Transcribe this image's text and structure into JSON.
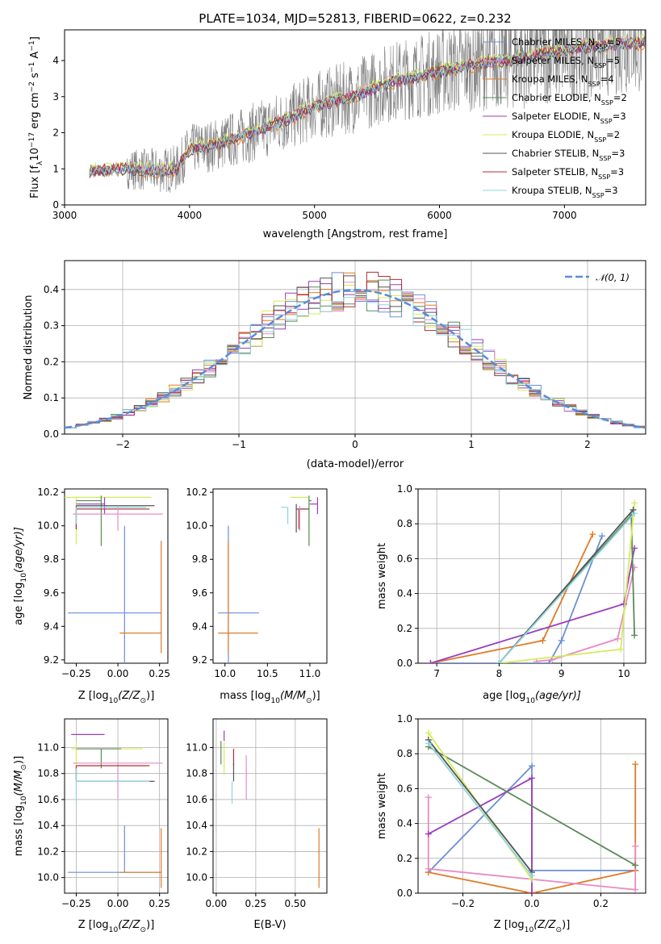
{
  "colors": {
    "chabrier_miles": "#6b8fd6",
    "salpeter_miles": "#e88bc4",
    "kroupa_miles": "#e07b27",
    "chabrier_elodie": "#5a8a5a",
    "salpeter_elodie": "#9a3dbd",
    "kroupa_elodie": "#d4ec5a",
    "chabrier_stelib": "#555555",
    "salpeter_stelib": "#b22c3a",
    "kroupa_stelib": "#8fd4e0",
    "data": "#808080",
    "normal": "#5b8bd8",
    "grid": "#b0b0b0"
  },
  "chart_data": [
    {
      "type": "line",
      "title": "PLATE=1034, MJD=52813, FIBERID=0622, z=0.232",
      "xlabel": "wavelength [Angstrom, rest frame]",
      "ylabel_parts": [
        "Flux [f",
        "λ",
        "10",
        "−17",
        " erg cm",
        "−2",
        " s",
        "−1",
        " A",
        "−1",
        "]"
      ],
      "xlim": [
        3000,
        7650
      ],
      "ylim": [
        0,
        4.85
      ],
      "xticks": [
        3000,
        4000,
        5000,
        6000,
        7000
      ],
      "yticks": [
        0,
        1,
        2,
        3,
        4
      ],
      "grid": false,
      "legend_position": "right",
      "series": [
        {
          "name_main": "Chabrier MILES, N",
          "name_sub": "SSP",
          "name_tail": "=5",
          "color_key": "chabrier_miles"
        },
        {
          "name_main": "Salpeter MILES, N",
          "name_sub": "SSP",
          "name_tail": "=5",
          "color_key": "salpeter_miles"
        },
        {
          "name_main": "Kroupa MILES, N",
          "name_sub": "SSP",
          "name_tail": "=4",
          "color_key": "kroupa_miles"
        },
        {
          "name_main": "Chabrier ELODIE, N",
          "name_sub": "SSP",
          "name_tail": "=2",
          "color_key": "chabrier_elodie"
        },
        {
          "name_main": "Salpeter ELODIE, N",
          "name_sub": "SSP",
          "name_tail": "=3",
          "color_key": "salpeter_elodie"
        },
        {
          "name_main": "Kroupa ELODIE, N",
          "name_sub": "SSP",
          "name_tail": "=2",
          "color_key": "kroupa_elodie"
        },
        {
          "name_main": "Chabrier STELIB, N",
          "name_sub": "SSP",
          "name_tail": "=3",
          "color_key": "chabrier_stelib"
        },
        {
          "name_main": "Salpeter STELIB, N",
          "name_sub": "SSP",
          "name_tail": "=3",
          "color_key": "salpeter_stelib"
        },
        {
          "name_main": "Kroupa STELIB, N",
          "name_sub": "SSP",
          "name_tail": "=3",
          "color_key": "kroupa_stelib"
        }
      ],
      "continuum": [
        [
          3200,
          0.95
        ],
        [
          3500,
          1.0
        ],
        [
          3750,
          0.95
        ],
        [
          3900,
          1.0
        ],
        [
          4000,
          1.55
        ],
        [
          4200,
          1.65
        ],
        [
          4500,
          2.0
        ],
        [
          4800,
          2.4
        ],
        [
          5000,
          2.75
        ],
        [
          5300,
          3.0
        ],
        [
          5600,
          3.4
        ],
        [
          6000,
          3.7
        ],
        [
          6300,
          3.9
        ],
        [
          6600,
          4.05
        ],
        [
          7000,
          4.3
        ],
        [
          7400,
          4.45
        ],
        [
          7650,
          4.5
        ]
      ]
    },
    {
      "type": "line",
      "xlabel": "(data-model)/error",
      "ylabel": "Normed distribution",
      "xlim": [
        -2.5,
        2.5
      ],
      "ylim": [
        0,
        0.48
      ],
      "xticks": [
        -2,
        -1,
        0,
        1,
        2
      ],
      "yticks": [
        0.0,
        0.1,
        0.2,
        0.3,
        0.4
      ],
      "grid": true,
      "legend_position": "top-right",
      "legend_label": "𝒩(0, 1)",
      "curve": "normal pdf, mean 0, sigma 1",
      "histogram_bin_width": 0.1
    },
    {
      "type": "scatter",
      "xlabel_parts": [
        "Z [log",
        "10",
        "(Z/Z",
        "⊙",
        ")]"
      ],
      "ylabel_parts": [
        "age  [log",
        "10",
        "(age/yr)]"
      ],
      "xlim": [
        -0.32,
        0.3
      ],
      "ylim": [
        9.18,
        10.22
      ],
      "xticks": [
        -0.25,
        0.0,
        0.25
      ],
      "yticks": [
        9.2,
        9.4,
        9.6,
        9.8,
        10.0,
        10.2
      ],
      "grid": false,
      "errorbars": [
        {
          "color_key": "chabrier_miles",
          "x": 0.04,
          "xerr": [
            0.34,
            0.22
          ],
          "y": 9.48,
          "yerr": [
            0.3,
            0.52
          ]
        },
        {
          "color_key": "kroupa_miles",
          "x": 0.26,
          "xerr": [
            0.25,
            0.0
          ],
          "y": 9.36,
          "yerr": [
            0.12,
            0.55
          ]
        },
        {
          "color_key": "kroupa_elodie",
          "x": -0.25,
          "xerr": [
            0.08,
            0.45
          ],
          "y": 10.17,
          "yerr": [
            0.28,
            0.0
          ]
        },
        {
          "color_key": "chabrier_elodie",
          "x": -0.1,
          "xerr": [
            0.15,
            0.0
          ],
          "y": 10.15,
          "yerr": [
            0.27,
            0.03
          ]
        },
        {
          "color_key": "chabrier_stelib",
          "x": -0.25,
          "xerr": [
            0.0,
            0.47
          ],
          "y": 10.12,
          "yerr": [
            0.14,
            0.0
          ]
        },
        {
          "color_key": "salpeter_stelib",
          "x": -0.25,
          "xerr": [
            0.0,
            0.44
          ],
          "y": 10.1,
          "yerr": [
            0.12,
            0.0
          ]
        },
        {
          "color_key": "salpeter_elodie",
          "x": -0.08,
          "xerr": [
            0.17,
            0.0
          ],
          "y": 10.13,
          "yerr": [
            0.06,
            0.04
          ]
        },
        {
          "color_key": "salpeter_miles",
          "x": 0.0,
          "xerr": [
            0.27,
            0.27
          ],
          "y": 10.07,
          "yerr": [
            0.1,
            0.05
          ]
        },
        {
          "color_key": "kroupa_stelib",
          "x": -0.25,
          "xerr": [
            0.0,
            0.42
          ],
          "y": 10.11,
          "yerr": [
            0.1,
            0.0
          ]
        }
      ]
    },
    {
      "type": "scatter",
      "xlabel_parts": [
        "mass [log",
        "10",
        "(M/M",
        "⊙",
        ")]"
      ],
      "xlim": [
        9.86,
        11.2
      ],
      "ylim": [
        9.18,
        10.22
      ],
      "xticks": [
        10.0,
        10.5,
        11.0
      ],
      "yticks": [
        9.2,
        9.4,
        9.6,
        9.8,
        10.0,
        10.2
      ],
      "grid": false,
      "errorbars": [
        {
          "color_key": "chabrier_miles",
          "x": 10.04,
          "xerr": [
            0.12,
            0.36
          ],
          "y": 9.48,
          "yerr": [
            0.3,
            0.52
          ]
        },
        {
          "color_key": "kroupa_miles",
          "x": 10.04,
          "xerr": [
            0.12,
            0.35
          ],
          "y": 9.36,
          "yerr": [
            0.12,
            0.55
          ]
        },
        {
          "color_key": "kroupa_elodie",
          "x": 10.99,
          "xerr": [
            0.22,
            0.0
          ],
          "y": 10.17,
          "yerr": [
            0.28,
            0.0
          ]
        },
        {
          "color_key": "chabrier_elodie",
          "x": 10.99,
          "xerr": [
            0.0,
            0.03
          ],
          "y": 10.15,
          "yerr": [
            0.27,
            0.03
          ]
        },
        {
          "color_key": "chabrier_stelib",
          "x": 10.84,
          "xerr": [
            0.0,
            0.15
          ],
          "y": 10.1,
          "yerr": [
            0.14,
            0.03
          ]
        },
        {
          "color_key": "salpeter_stelib",
          "x": 10.87,
          "xerr": [
            0.0,
            0.1
          ],
          "y": 10.1,
          "yerr": [
            0.12,
            0.0
          ]
        },
        {
          "color_key": "salpeter_elodie",
          "x": 11.09,
          "xerr": [
            0.09,
            0.0
          ],
          "y": 10.13,
          "yerr": [
            0.06,
            0.04
          ]
        },
        {
          "color_key": "salpeter_miles",
          "x": 10.88,
          "xerr": [
            0.0,
            0.0
          ],
          "y": 10.07,
          "yerr": [
            0.1,
            0.05
          ]
        },
        {
          "color_key": "kroupa_stelib",
          "x": 10.74,
          "xerr": [
            0.08,
            0.0
          ],
          "y": 10.11,
          "yerr": [
            0.1,
            0.0
          ]
        }
      ]
    },
    {
      "type": "line",
      "xlabel_parts": [
        "age  [log",
        "10",
        "(age/yr)]"
      ],
      "ylabel": "mass weight",
      "xlim": [
        6.7,
        10.35
      ],
      "ylim": [
        0,
        1
      ],
      "xticks": [
        7,
        8,
        9,
        10
      ],
      "yticks": [
        0.0,
        0.2,
        0.4,
        0.6,
        0.8,
        1.0
      ],
      "grid": true,
      "series": [
        {
          "color_key": "chabrier_miles",
          "x": [
            6.9,
            8.8,
            9.0,
            9.65
          ],
          "y": [
            0.0,
            0.0,
            0.13,
            0.73
          ]
        },
        {
          "color_key": "kroupa_miles",
          "x": [
            6.9,
            8.7,
            9.5
          ],
          "y": [
            0.0,
            0.13,
            0.74
          ]
        },
        {
          "color_key": "salpeter_miles",
          "x": [
            8.6,
            8.85,
            9.9,
            10.17
          ],
          "y": [
            0.01,
            0.02,
            0.14,
            0.55
          ]
        },
        {
          "color_key": "salpeter_elodie",
          "x": [
            6.9,
            10.0,
            10.17
          ],
          "y": [
            0.0,
            0.34,
            0.66
          ]
        },
        {
          "color_key": "chabrier_elodie",
          "x": [
            8.0,
            10.12,
            10.17
          ],
          "y": [
            0.0,
            0.85,
            0.16
          ]
        },
        {
          "color_key": "kroupa_elodie",
          "x": [
            8.0,
            9.95,
            10.17
          ],
          "y": [
            0.0,
            0.08,
            0.92
          ]
        },
        {
          "color_key": "chabrier_stelib",
          "x": [
            8.0,
            10.15
          ],
          "y": [
            0.0,
            0.88
          ]
        },
        {
          "color_key": "kroupa_stelib",
          "x": [
            8.0,
            10.17
          ],
          "y": [
            0.0,
            0.86
          ]
        }
      ]
    },
    {
      "type": "scatter",
      "xlabel_parts": [
        "Z [log",
        "10",
        "(Z/Z",
        "⊙",
        ")]"
      ],
      "ylabel_parts": [
        "mass [log",
        "10",
        "(M/M",
        "⊙",
        ")]"
      ],
      "xlim": [
        -0.32,
        0.3
      ],
      "ylim": [
        9.88,
        11.22
      ],
      "xticks": [
        -0.25,
        0.0,
        0.25
      ],
      "yticks": [
        10.0,
        10.2,
        10.4,
        10.6,
        10.8,
        11.0
      ],
      "grid": true,
      "errorbars": [
        {
          "color_key": "chabrier_miles",
          "x": 0.04,
          "xerr": [
            0.34,
            0.22
          ],
          "y": 10.04,
          "yerr": [
            0.0,
            0.36
          ]
        },
        {
          "color_key": "kroupa_miles",
          "x": 0.26,
          "xerr": [
            0.25,
            0.0
          ],
          "y": 10.04,
          "yerr": [
            0.12,
            0.34
          ]
        },
        {
          "color_key": "salpeter_elodie",
          "x": -0.08,
          "xerr": [
            0.2,
            0.0
          ],
          "y": 11.1,
          "yerr": [
            0.0,
            0.0
          ]
        },
        {
          "color_key": "kroupa_elodie",
          "x": -0.25,
          "xerr": [
            0.03,
            0.4
          ],
          "y": 10.99,
          "yerr": [
            0.23,
            0.05
          ]
        },
        {
          "color_key": "chabrier_elodie",
          "x": -0.1,
          "xerr": [
            0.15,
            0.12
          ],
          "y": 10.99,
          "yerr": [
            0.15,
            0.0
          ]
        },
        {
          "color_key": "salpeter_miles",
          "x": 0.0,
          "xerr": [
            0.27,
            0.27
          ],
          "y": 10.88,
          "yerr": [
            0.27,
            0.0
          ]
        },
        {
          "color_key": "salpeter_stelib",
          "x": -0.25,
          "xerr": [
            0.0,
            0.44
          ],
          "y": 10.86,
          "yerr": [
            0.1,
            0.0
          ]
        },
        {
          "color_key": "chabrier_stelib",
          "x": -0.25,
          "xerr": [
            0.0,
            0.47
          ],
          "y": 10.74,
          "yerr": [
            0.0,
            0.1
          ]
        },
        {
          "color_key": "kroupa_stelib",
          "x": -0.25,
          "xerr": [
            0.0,
            0.44
          ],
          "y": 10.74,
          "yerr": [
            0.17,
            0.1
          ]
        }
      ]
    },
    {
      "type": "scatter",
      "xlabel": "E(B-V)",
      "xlim": [
        -0.02,
        0.7
      ],
      "ylim": [
        9.88,
        11.22
      ],
      "xticks": [
        0.0,
        0.25,
        0.5
      ],
      "yticks": [
        10.0,
        10.2,
        10.4,
        10.6,
        10.8,
        11.0
      ],
      "grid": true,
      "errorbars": [
        {
          "color_key": "kroupa_miles",
          "x": 0.65,
          "y": 10.04,
          "yerr": [
            0.12,
            0.34
          ]
        },
        {
          "color_key": "salpeter_elodie",
          "x": 0.05,
          "y": 11.05,
          "yerr": [
            0.0,
            0.08
          ]
        },
        {
          "color_key": "kroupa_elodie",
          "x": 0.05,
          "y": 10.99,
          "yerr": [
            0.2,
            0.05
          ]
        },
        {
          "color_key": "chabrier_elodie",
          "x": 0.03,
          "y": 10.99,
          "yerr": [
            0.12,
            0.06
          ]
        },
        {
          "color_key": "salpeter_miles",
          "x": 0.19,
          "y": 10.8,
          "yerr": [
            0.2,
            0.14
          ]
        },
        {
          "color_key": "salpeter_stelib",
          "x": 0.11,
          "y": 10.86,
          "yerr": [
            0.0,
            0.13
          ]
        },
        {
          "color_key": "chabrier_stelib",
          "x": 0.11,
          "y": 10.74,
          "yerr": [
            0.0,
            0.14
          ]
        },
        {
          "color_key": "kroupa_stelib",
          "x": 0.1,
          "y": 10.74,
          "yerr": [
            0.17,
            0.0
          ]
        }
      ]
    },
    {
      "type": "line",
      "xlabel_parts": [
        "Z [log",
        "10",
        "(Z/Z",
        "⊙",
        ")]"
      ],
      "ylabel": "mass weight",
      "xlim": [
        -0.33,
        0.33
      ],
      "ylim": [
        0,
        1
      ],
      "xticks": [
        -0.2,
        0.0,
        0.2
      ],
      "yticks": [
        0.0,
        0.2,
        0.4,
        0.6,
        0.8,
        1.0
      ],
      "grid": true,
      "series": [
        {
          "color_key": "chabrier_miles",
          "x": [
            -0.3,
            0.0,
            0.0,
            0.3,
            0.3
          ],
          "y": [
            0.12,
            0.73,
            0.13,
            0.13,
            0.13
          ]
        },
        {
          "color_key": "kroupa_miles",
          "x": [
            -0.3,
            0.0,
            0.3,
            0.3
          ],
          "y": [
            0.12,
            0.0,
            0.13,
            0.74
          ]
        },
        {
          "color_key": "salpeter_miles",
          "x": [
            -0.3,
            -0.3,
            0.3,
            0.3
          ],
          "y": [
            0.55,
            0.14,
            0.02,
            0.27
          ]
        },
        {
          "color_key": "salpeter_elodie",
          "x": [
            -0.3,
            0.0,
            0.0
          ],
          "y": [
            0.34,
            0.66,
            0.0
          ]
        },
        {
          "color_key": "chabrier_elodie",
          "x": [
            -0.3,
            0.3
          ],
          "y": [
            0.84,
            0.16
          ]
        },
        {
          "color_key": "kroupa_elodie",
          "x": [
            -0.3,
            0.0
          ],
          "y": [
            0.92,
            0.08
          ]
        },
        {
          "color_key": "chabrier_stelib",
          "x": [
            -0.3,
            0.0
          ],
          "y": [
            0.88,
            0.12
          ]
        },
        {
          "color_key": "kroupa_stelib",
          "x": [
            -0.3,
            0.0
          ],
          "y": [
            0.86,
            0.1
          ]
        }
      ]
    }
  ]
}
